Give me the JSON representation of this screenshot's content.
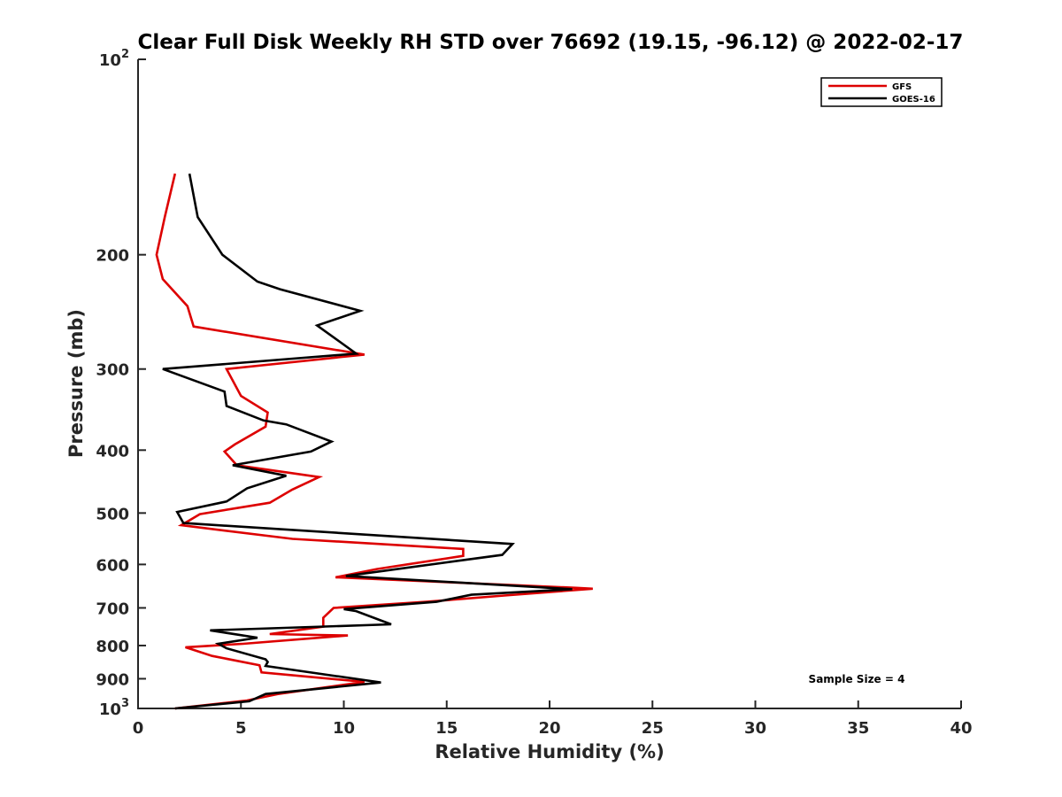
{
  "chart_data": {
    "type": "line",
    "title": "Clear Full Disk Weekly RH STD over 76692 (19.15, -96.12) @ 2022-02-17",
    "xlabel": "Relative Humidity (%)",
    "ylabel": "Pressure (mb)",
    "xlim": [
      0,
      40
    ],
    "ylim": [
      100,
      1000
    ],
    "yscale": "log",
    "y_reversed": true,
    "x_ticks": [
      0,
      5,
      10,
      15,
      20,
      25,
      30,
      35,
      40
    ],
    "x_tick_labels": [
      "0",
      "5",
      "10",
      "15",
      "20",
      "25",
      "30",
      "35",
      "40"
    ],
    "y_ticks": [
      100,
      200,
      300,
      400,
      500,
      600,
      700,
      800,
      900,
      1000
    ],
    "y_tick_labels": [
      {
        "base": "10",
        "exp": "2"
      },
      {
        "base": "200"
      },
      {
        "base": "300"
      },
      {
        "base": "400"
      },
      {
        "base": "500"
      },
      {
        "base": "600"
      },
      {
        "base": "700"
      },
      {
        "base": "800"
      },
      {
        "base": "900"
      },
      {
        "base": "10",
        "exp": "3"
      }
    ],
    "legend_position": "top-right",
    "annotation": "Sample Size = 4",
    "series": [
      {
        "name": "GFS",
        "color": "#dd0000",
        "points": [
          [
            1.8,
            150
          ],
          [
            1.3,
            175
          ],
          [
            0.9,
            200
          ],
          [
            1.2,
            218
          ],
          [
            2.4,
            240
          ],
          [
            2.7,
            258
          ],
          [
            11.0,
            285
          ],
          [
            4.3,
            300
          ],
          [
            5.0,
            330
          ],
          [
            6.3,
            350
          ],
          [
            6.2,
            368
          ],
          [
            4.7,
            392
          ],
          [
            4.2,
            402
          ],
          [
            4.8,
            422
          ],
          [
            8.8,
            440
          ],
          [
            7.5,
            460
          ],
          [
            6.4,
            482
          ],
          [
            3.0,
            502
          ],
          [
            2.1,
            522
          ],
          [
            7.5,
            548
          ],
          [
            15.8,
            568
          ],
          [
            15.8,
            582
          ],
          [
            11.6,
            610
          ],
          [
            9.6,
            628
          ],
          [
            21.3,
            652
          ],
          [
            22.1,
            654
          ],
          [
            17.8,
            670
          ],
          [
            14.0,
            685
          ],
          [
            9.5,
            700
          ],
          [
            9.0,
            725
          ],
          [
            9.0,
            748
          ],
          [
            6.4,
            768
          ],
          [
            10.2,
            772
          ],
          [
            5.1,
            795
          ],
          [
            2.3,
            805
          ],
          [
            3.6,
            830
          ],
          [
            5.9,
            858
          ],
          [
            6.0,
            880
          ],
          [
            11.0,
            910
          ],
          [
            6.8,
            950
          ],
          [
            5.3,
            972
          ],
          [
            1.8,
            1000
          ]
        ]
      },
      {
        "name": "GOES-16",
        "color": "#000000",
        "points": [
          [
            2.5,
            150
          ],
          [
            2.9,
            175
          ],
          [
            4.1,
            200
          ],
          [
            5.8,
            220
          ],
          [
            6.9,
            226
          ],
          [
            10.8,
            244
          ],
          [
            8.7,
            257
          ],
          [
            10.6,
            284
          ],
          [
            1.2,
            300
          ],
          [
            4.2,
            325
          ],
          [
            4.3,
            342
          ],
          [
            6.1,
            360
          ],
          [
            7.2,
            365
          ],
          [
            9.4,
            388
          ],
          [
            8.4,
            402
          ],
          [
            4.6,
            422
          ],
          [
            7.2,
            438
          ],
          [
            5.3,
            458
          ],
          [
            4.3,
            480
          ],
          [
            1.9,
            498
          ],
          [
            2.2,
            518
          ],
          [
            18.2,
            558
          ],
          [
            17.7,
            580
          ],
          [
            10.1,
            625
          ],
          [
            21.1,
            655
          ],
          [
            16.2,
            668
          ],
          [
            14.5,
            685
          ],
          [
            10.0,
            703
          ],
          [
            10.6,
            708
          ],
          [
            12.3,
            742
          ],
          [
            3.5,
            758
          ],
          [
            5.8,
            778
          ],
          [
            3.9,
            795
          ],
          [
            4.3,
            808
          ],
          [
            6.2,
            840
          ],
          [
            6.3,
            848
          ],
          [
            6.2,
            860
          ],
          [
            11.8,
            912
          ],
          [
            6.2,
            950
          ],
          [
            5.4,
            975
          ],
          [
            1.8,
            1000
          ]
        ]
      }
    ]
  }
}
